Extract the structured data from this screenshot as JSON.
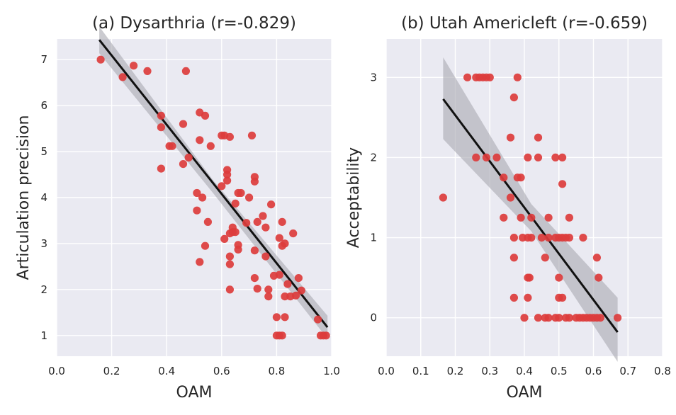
{
  "chart_data": [
    {
      "type": "scatter",
      "title": "(a) Dysarthria (r=-0.829)",
      "xlabel": "OAM",
      "ylabel": "Articulation precision",
      "xlim": [
        0.0,
        1.0
      ],
      "ylim": [
        0.55,
        7.45
      ],
      "xticks": [
        0.0,
        0.2,
        0.4,
        0.6,
        0.8,
        1.0
      ],
      "xtick_labels": [
        "0.0",
        "0.2",
        "0.4",
        "0.6",
        "0.8",
        "1.0"
      ],
      "yticks": [
        1,
        2,
        3,
        4,
        5,
        6,
        7
      ],
      "ytick_labels": [
        "1",
        "2",
        "3",
        "4",
        "5",
        "6",
        "7"
      ],
      "grid": true,
      "point_color": "#dc3c3c",
      "regression": {
        "x": [
          0.155,
          0.985
        ],
        "y": [
          7.43,
          1.18
        ],
        "color": "#111111"
      },
      "ci_band": {
        "x": [
          0.155,
          0.57,
          0.985
        ],
        "upper": [
          7.72,
          4.37,
          1.43
        ],
        "lower": [
          7.14,
          4.09,
          0.93
        ],
        "color": "#a9a9b0"
      },
      "points": [
        [
          0.16,
          7.0
        ],
        [
          0.24,
          6.62
        ],
        [
          0.28,
          6.87
        ],
        [
          0.33,
          6.75
        ],
        [
          0.47,
          6.75
        ],
        [
          0.38,
          5.78
        ],
        [
          0.38,
          5.53
        ],
        [
          0.46,
          5.6
        ],
        [
          0.52,
          5.85
        ],
        [
          0.54,
          5.78
        ],
        [
          0.41,
          5.12
        ],
        [
          0.42,
          5.12
        ],
        [
          0.52,
          5.25
        ],
        [
          0.56,
          5.12
        ],
        [
          0.6,
          5.35
        ],
        [
          0.61,
          5.35
        ],
        [
          0.63,
          5.32
        ],
        [
          0.71,
          5.35
        ],
        [
          0.46,
          4.73
        ],
        [
          0.48,
          4.87
        ],
        [
          0.38,
          4.63
        ],
        [
          0.62,
          4.6
        ],
        [
          0.62,
          4.5
        ],
        [
          0.62,
          4.37
        ],
        [
          0.6,
          4.25
        ],
        [
          0.72,
          4.45
        ],
        [
          0.72,
          4.35
        ],
        [
          0.51,
          4.1
        ],
        [
          0.53,
          4.0
        ],
        [
          0.66,
          4.1
        ],
        [
          0.67,
          4.1
        ],
        [
          0.7,
          4.0
        ],
        [
          0.78,
          3.85
        ],
        [
          0.65,
          3.87
        ],
        [
          0.51,
          3.72
        ],
        [
          0.55,
          3.47
        ],
        [
          0.64,
          3.35
        ],
        [
          0.64,
          3.25
        ],
        [
          0.63,
          3.22
        ],
        [
          0.65,
          3.25
        ],
        [
          0.69,
          3.45
        ],
        [
          0.73,
          3.47
        ],
        [
          0.75,
          3.6
        ],
        [
          0.76,
          3.35
        ],
        [
          0.61,
          3.1
        ],
        [
          0.54,
          2.95
        ],
        [
          0.66,
          2.97
        ],
        [
          0.66,
          2.87
        ],
        [
          0.63,
          2.72
        ],
        [
          0.72,
          2.85
        ],
        [
          0.76,
          2.72
        ],
        [
          0.81,
          3.12
        ],
        [
          0.83,
          3.0
        ],
        [
          0.82,
          2.95
        ],
        [
          0.82,
          3.47
        ],
        [
          0.86,
          3.22
        ],
        [
          0.52,
          2.6
        ],
        [
          0.63,
          2.55
        ],
        [
          0.72,
          2.25
        ],
        [
          0.73,
          2.02
        ],
        [
          0.63,
          2.0
        ],
        [
          0.77,
          2.0
        ],
        [
          0.77,
          1.85
        ],
        [
          0.79,
          2.3
        ],
        [
          0.81,
          2.32
        ],
        [
          0.84,
          2.12
        ],
        [
          0.85,
          1.85
        ],
        [
          0.83,
          1.85
        ],
        [
          0.87,
          1.87
        ],
        [
          0.88,
          2.25
        ],
        [
          0.89,
          1.98
        ],
        [
          0.8,
          1.4
        ],
        [
          0.83,
          1.4
        ],
        [
          0.95,
          1.35
        ],
        [
          0.8,
          1.0
        ],
        [
          0.81,
          1.0
        ],
        [
          0.82,
          1.0
        ],
        [
          0.96,
          1.0
        ],
        [
          0.97,
          1.0
        ],
        [
          0.98,
          1.0
        ]
      ]
    },
    {
      "type": "scatter",
      "title": "(b) Utah Americleft (r=-0.659)",
      "xlabel": "OAM",
      "ylabel": "Acceptability",
      "xlim": [
        0.0,
        0.8
      ],
      "ylim": [
        -0.48,
        3.48
      ],
      "xticks": [
        0.0,
        0.1,
        0.2,
        0.3,
        0.4,
        0.5,
        0.6,
        0.7,
        0.8
      ],
      "xtick_labels": [
        "0.0",
        "0.1",
        "0.2",
        "0.3",
        "0.4",
        "0.5",
        "0.6",
        "0.7",
        "0.8"
      ],
      "yticks": [
        0,
        1,
        2,
        3
      ],
      "ytick_labels": [
        "0",
        "1",
        "2",
        "3"
      ],
      "grid": true,
      "point_color": "#dc3c3c",
      "regression": {
        "x": [
          0.165,
          0.67
        ],
        "y": [
          2.73,
          -0.18
        ],
        "color": "#111111"
      },
      "ci_band": {
        "x": [
          0.165,
          0.42,
          0.67
        ],
        "upper": [
          3.25,
          1.42,
          0.25
        ],
        "lower": [
          2.23,
          1.08,
          -0.55
        ],
        "color": "#a9a9b0"
      },
      "points": [
        [
          0.235,
          3.0
        ],
        [
          0.26,
          3.0
        ],
        [
          0.27,
          3.0
        ],
        [
          0.28,
          3.0
        ],
        [
          0.29,
          3.0
        ],
        [
          0.3,
          3.0
        ],
        [
          0.38,
          3.0
        ],
        [
          0.37,
          2.75
        ],
        [
          0.36,
          2.25
        ],
        [
          0.44,
          2.25
        ],
        [
          0.26,
          2.0
        ],
        [
          0.29,
          2.0
        ],
        [
          0.32,
          2.0
        ],
        [
          0.41,
          2.0
        ],
        [
          0.44,
          2.0
        ],
        [
          0.49,
          2.0
        ],
        [
          0.51,
          2.0
        ],
        [
          0.34,
          1.75
        ],
        [
          0.38,
          1.75
        ],
        [
          0.39,
          1.75
        ],
        [
          0.51,
          1.67
        ],
        [
          0.165,
          1.5
        ],
        [
          0.36,
          1.5
        ],
        [
          0.34,
          1.25
        ],
        [
          0.39,
          1.25
        ],
        [
          0.42,
          1.25
        ],
        [
          0.47,
          1.25
        ],
        [
          0.53,
          1.25
        ],
        [
          0.37,
          1.0
        ],
        [
          0.395,
          1.0
        ],
        [
          0.41,
          1.0
        ],
        [
          0.42,
          1.0
        ],
        [
          0.45,
          1.0
        ],
        [
          0.47,
          1.0
        ],
        [
          0.49,
          1.0
        ],
        [
          0.5,
          1.0
        ],
        [
          0.51,
          1.0
        ],
        [
          0.52,
          1.0
        ],
        [
          0.53,
          1.0
        ],
        [
          0.57,
          1.0
        ],
        [
          0.37,
          0.75
        ],
        [
          0.46,
          0.75
        ],
        [
          0.61,
          0.75
        ],
        [
          0.41,
          0.5
        ],
        [
          0.415,
          0.5
        ],
        [
          0.5,
          0.5
        ],
        [
          0.615,
          0.5
        ],
        [
          0.37,
          0.25
        ],
        [
          0.41,
          0.25
        ],
        [
          0.5,
          0.25
        ],
        [
          0.51,
          0.25
        ],
        [
          0.4,
          0.0
        ],
        [
          0.44,
          0.0
        ],
        [
          0.46,
          0.0
        ],
        [
          0.47,
          0.0
        ],
        [
          0.49,
          0.0
        ],
        [
          0.5,
          0.0
        ],
        [
          0.52,
          0.0
        ],
        [
          0.53,
          0.0
        ],
        [
          0.55,
          0.0
        ],
        [
          0.56,
          0.0
        ],
        [
          0.57,
          0.0
        ],
        [
          0.58,
          0.0
        ],
        [
          0.59,
          0.0
        ],
        [
          0.6,
          0.0
        ],
        [
          0.61,
          0.0
        ],
        [
          0.62,
          0.0
        ],
        [
          0.67,
          0.0
        ]
      ]
    }
  ]
}
